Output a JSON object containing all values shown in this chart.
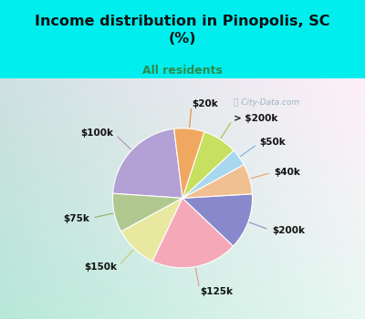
{
  "title": "Income distribution in Pinopolis, SC\n(%)",
  "subtitle": "All residents",
  "title_color": "#111111",
  "subtitle_color": "#2e8b4a",
  "bg_outer": "#00EEEE",
  "bg_panel_tl": "#c8ede0",
  "bg_panel_br": "#e8f8f8",
  "watermark": "ⓘ City-Data.com",
  "labels": [
    "$100k",
    "$75k",
    "$150k",
    "$125k",
    "$200k",
    "$40k",
    "$50k",
    "> $200k",
    "$20k"
  ],
  "values": [
    22,
    9,
    10,
    20,
    13,
    7,
    4,
    8,
    7
  ],
  "colors": [
    "#b3a0d4",
    "#b0c890",
    "#e8e8a0",
    "#f4a8b8",
    "#8888cc",
    "#f0c090",
    "#a8d8f0",
    "#c8e060",
    "#f0a860"
  ],
  "startangle": 97,
  "label_fontsize": 7.5,
  "line_colors": [
    "#b090c0",
    "#90b070",
    "#c8c870",
    "#f09090",
    "#9090c0",
    "#e0a070",
    "#80b0e0",
    "#a0c040",
    "#e09040"
  ]
}
